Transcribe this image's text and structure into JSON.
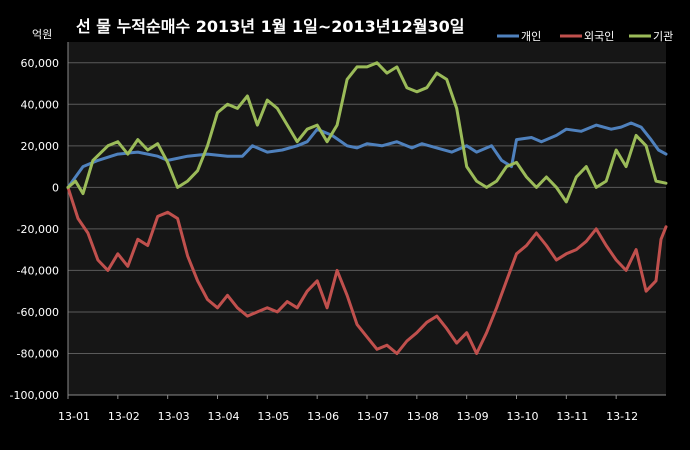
{
  "chart_data": {
    "type": "line",
    "title": "선 물  누적순매수 2013년 1월 1일~2013년12월30일",
    "unit_label": "억원",
    "ylim": [
      -100000,
      70000
    ],
    "yticks": [
      60000,
      40000,
      20000,
      0,
      -20000,
      -40000,
      -60000,
      -80000,
      -100000
    ],
    "ytick_labels": [
      "60,000",
      "40,000",
      "20,000",
      "0",
      "-20,000",
      "-40,000",
      "-60,000",
      "-80,000",
      "-100,000"
    ],
    "x_labels": [
      "13-01",
      "13-02",
      "13-03",
      "13-04",
      "13-05",
      "13-06",
      "13-07",
      "13-08",
      "13-09",
      "13-10",
      "13-11",
      "13-12"
    ],
    "grid": true,
    "legend_position": "top-right",
    "series": [
      {
        "name": "개인",
        "color": "#4f81bd",
        "points": [
          [
            0.0,
            0
          ],
          [
            0.3,
            10000
          ],
          [
            0.6,
            13000
          ],
          [
            1.0,
            16000
          ],
          [
            1.4,
            17000
          ],
          [
            1.8,
            15000
          ],
          [
            2.0,
            13000
          ],
          [
            2.4,
            15000
          ],
          [
            2.8,
            16000
          ],
          [
            3.2,
            15000
          ],
          [
            3.5,
            15000
          ],
          [
            3.7,
            20000
          ],
          [
            4.0,
            17000
          ],
          [
            4.3,
            18000
          ],
          [
            4.6,
            20000
          ],
          [
            4.8,
            22000
          ],
          [
            5.0,
            28000
          ],
          [
            5.3,
            25000
          ],
          [
            5.6,
            20000
          ],
          [
            5.8,
            19000
          ],
          [
            6.0,
            21000
          ],
          [
            6.3,
            20000
          ],
          [
            6.6,
            22000
          ],
          [
            6.9,
            19000
          ],
          [
            7.1,
            21000
          ],
          [
            7.4,
            19000
          ],
          [
            7.7,
            17000
          ],
          [
            8.0,
            20000
          ],
          [
            8.2,
            17000
          ],
          [
            8.5,
            20000
          ],
          [
            8.7,
            13000
          ],
          [
            8.9,
            10000
          ],
          [
            9.0,
            23000
          ],
          [
            9.3,
            24000
          ],
          [
            9.5,
            22000
          ],
          [
            9.8,
            25000
          ],
          [
            10.0,
            28000
          ],
          [
            10.3,
            27000
          ],
          [
            10.6,
            30000
          ],
          [
            10.9,
            28000
          ],
          [
            11.1,
            29000
          ],
          [
            11.3,
            31000
          ],
          [
            11.5,
            29000
          ],
          [
            11.7,
            23000
          ],
          [
            11.85,
            18000
          ],
          [
            12.0,
            16000
          ]
        ]
      },
      {
        "name": "외국인",
        "color": "#c0504d",
        "points": [
          [
            0.0,
            0
          ],
          [
            0.2,
            -15000
          ],
          [
            0.4,
            -22000
          ],
          [
            0.6,
            -35000
          ],
          [
            0.8,
            -40000
          ],
          [
            1.0,
            -32000
          ],
          [
            1.2,
            -38000
          ],
          [
            1.4,
            -25000
          ],
          [
            1.6,
            -28000
          ],
          [
            1.8,
            -14000
          ],
          [
            2.0,
            -12000
          ],
          [
            2.2,
            -15000
          ],
          [
            2.4,
            -33000
          ],
          [
            2.6,
            -45000
          ],
          [
            2.8,
            -54000
          ],
          [
            3.0,
            -58000
          ],
          [
            3.2,
            -52000
          ],
          [
            3.4,
            -58000
          ],
          [
            3.6,
            -62000
          ],
          [
            3.8,
            -60000
          ],
          [
            4.0,
            -58000
          ],
          [
            4.2,
            -60000
          ],
          [
            4.4,
            -55000
          ],
          [
            4.6,
            -58000
          ],
          [
            4.8,
            -50000
          ],
          [
            5.0,
            -45000
          ],
          [
            5.2,
            -58000
          ],
          [
            5.4,
            -40000
          ],
          [
            5.6,
            -52000
          ],
          [
            5.8,
            -66000
          ],
          [
            6.0,
            -72000
          ],
          [
            6.2,
            -78000
          ],
          [
            6.4,
            -76000
          ],
          [
            6.6,
            -80000
          ],
          [
            6.8,
            -74000
          ],
          [
            7.0,
            -70000
          ],
          [
            7.2,
            -65000
          ],
          [
            7.4,
            -62000
          ],
          [
            7.6,
            -68000
          ],
          [
            7.8,
            -75000
          ],
          [
            8.0,
            -70000
          ],
          [
            8.2,
            -80000
          ],
          [
            8.4,
            -70000
          ],
          [
            8.6,
            -58000
          ],
          [
            8.8,
            -45000
          ],
          [
            9.0,
            -32000
          ],
          [
            9.2,
            -28000
          ],
          [
            9.4,
            -22000
          ],
          [
            9.6,
            -28000
          ],
          [
            9.8,
            -35000
          ],
          [
            10.0,
            -32000
          ],
          [
            10.2,
            -30000
          ],
          [
            10.4,
            -26000
          ],
          [
            10.6,
            -20000
          ],
          [
            10.8,
            -28000
          ],
          [
            11.0,
            -35000
          ],
          [
            11.2,
            -40000
          ],
          [
            11.4,
            -30000
          ],
          [
            11.6,
            -50000
          ],
          [
            11.8,
            -45000
          ],
          [
            11.9,
            -25000
          ],
          [
            12.0,
            -19000
          ]
        ]
      },
      {
        "name": "기관",
        "color": "#9bbb59",
        "points": [
          [
            0.0,
            0
          ],
          [
            0.15,
            3000
          ],
          [
            0.3,
            -3000
          ],
          [
            0.5,
            13000
          ],
          [
            0.8,
            20000
          ],
          [
            1.0,
            22000
          ],
          [
            1.2,
            16000
          ],
          [
            1.4,
            23000
          ],
          [
            1.6,
            18000
          ],
          [
            1.8,
            21000
          ],
          [
            2.0,
            12000
          ],
          [
            2.2,
            0
          ],
          [
            2.4,
            3000
          ],
          [
            2.6,
            8000
          ],
          [
            2.8,
            20000
          ],
          [
            3.0,
            36000
          ],
          [
            3.2,
            40000
          ],
          [
            3.4,
            38000
          ],
          [
            3.6,
            44000
          ],
          [
            3.8,
            30000
          ],
          [
            4.0,
            42000
          ],
          [
            4.2,
            38000
          ],
          [
            4.4,
            30000
          ],
          [
            4.6,
            22000
          ],
          [
            4.8,
            28000
          ],
          [
            5.0,
            30000
          ],
          [
            5.2,
            22000
          ],
          [
            5.4,
            30000
          ],
          [
            5.6,
            52000
          ],
          [
            5.8,
            58000
          ],
          [
            6.0,
            58000
          ],
          [
            6.2,
            60000
          ],
          [
            6.4,
            55000
          ],
          [
            6.6,
            58000
          ],
          [
            6.8,
            48000
          ],
          [
            7.0,
            46000
          ],
          [
            7.2,
            48000
          ],
          [
            7.4,
            55000
          ],
          [
            7.6,
            52000
          ],
          [
            7.8,
            38000
          ],
          [
            8.0,
            10000
          ],
          [
            8.2,
            3000
          ],
          [
            8.4,
            0
          ],
          [
            8.6,
            3000
          ],
          [
            8.8,
            10000
          ],
          [
            9.0,
            12000
          ],
          [
            9.2,
            5000
          ],
          [
            9.4,
            0
          ],
          [
            9.6,
            5000
          ],
          [
            9.8,
            0
          ],
          [
            10.0,
            -7000
          ],
          [
            10.2,
            5000
          ],
          [
            10.4,
            10000
          ],
          [
            10.6,
            0
          ],
          [
            10.8,
            3000
          ],
          [
            11.0,
            18000
          ],
          [
            11.2,
            10000
          ],
          [
            11.4,
            25000
          ],
          [
            11.6,
            20000
          ],
          [
            11.8,
            3000
          ],
          [
            12.0,
            2000
          ]
        ]
      }
    ]
  }
}
